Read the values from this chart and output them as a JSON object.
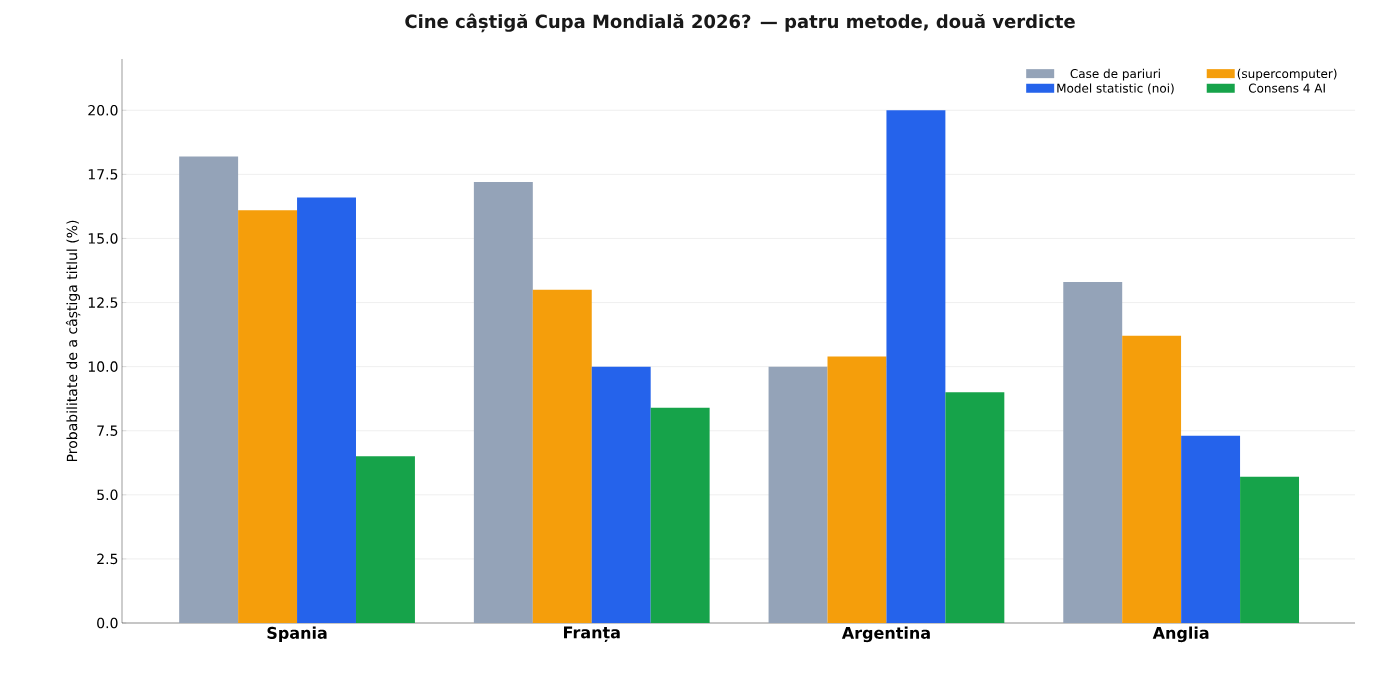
{
  "chart_data": {
    "type": "bar",
    "title": "Cine câștigă Cupa Mondială 2026? — patru metode, două verdicte",
    "ylabel": "Probabilitate de a câștiga titlul (%)",
    "categories": [
      "Spania",
      "Franța",
      "Argentina",
      "Anglia"
    ],
    "series": [
      {
        "name": "Case de pariuri",
        "color": "#94a3b8",
        "values": [
          18.2,
          17.2,
          10.0,
          13.3
        ]
      },
      {
        "name": "(supercomputer)",
        "color": "#f59e0b",
        "values": [
          16.1,
          13.0,
          10.4,
          11.2
        ]
      },
      {
        "name": "Model statistic (noi)",
        "color": "#2563eb",
        "values": [
          16.6,
          10.0,
          20.0,
          7.3
        ]
      },
      {
        "name": "Consens 4 AI",
        "color": "#16a34a",
        "values": [
          6.5,
          8.4,
          9.0,
          5.7
        ]
      }
    ],
    "ylim": [
      0,
      22
    ],
    "yticks": [
      {
        "value": 0,
        "label": "0.0"
      },
      {
        "value": 2.5,
        "label": "2.5"
      },
      {
        "value": 5,
        "label": "5.0"
      },
      {
        "value": 7.5,
        "label": "7.5"
      },
      {
        "value": 10,
        "label": "10.0"
      },
      {
        "value": 12.5,
        "label": "12.5"
      },
      {
        "value": 15,
        "label": "15.0"
      },
      {
        "value": 17.5,
        "label": "17.5"
      },
      {
        "value": 20,
        "label": "20.0"
      }
    ],
    "grid": "y",
    "legend": "top right"
  }
}
